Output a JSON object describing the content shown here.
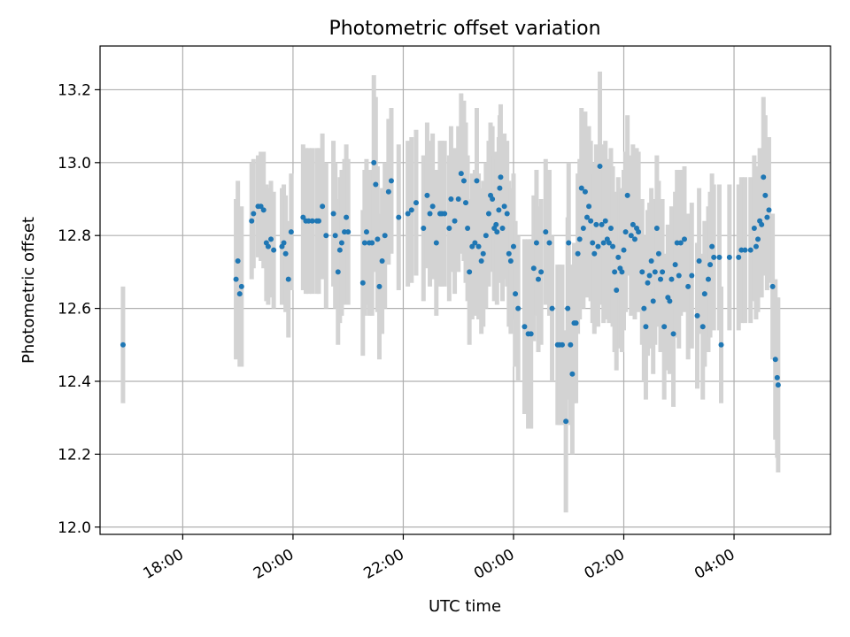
{
  "chart_data": {
    "type": "scatter",
    "title": "Photometric offset variation",
    "xlabel": "UTC time",
    "ylabel": "Photometric offset",
    "x_axis_kind": "time (hours, UTC)",
    "xlim": [
      "16:30",
      "05:45"
    ],
    "ylim": [
      11.98,
      13.32
    ],
    "x_ticks": [
      "18:00",
      "20:00",
      "22:00",
      "00:00",
      "02:00",
      "04:00"
    ],
    "y_ticks": [
      "12.0",
      "12.2",
      "12.4",
      "12.6",
      "12.8",
      "13.0",
      "13.2"
    ],
    "grid": true,
    "point_color": "#1f77b4",
    "errorbar_color": "#d3d3d3",
    "series": [
      {
        "points": [
          [
            "16:55",
            12.5,
            0.16
          ],
          [
            "18:58",
            12.68,
            0.22
          ],
          [
            "19:00",
            12.73,
            0.22
          ],
          [
            "19:02",
            12.64,
            0.2
          ],
          [
            "19:04",
            12.66,
            0.22
          ],
          [
            "19:15",
            12.84,
            0.16
          ],
          [
            "19:17",
            12.86,
            0.15
          ],
          [
            "19:22",
            12.88,
            0.14
          ],
          [
            "19:25",
            12.88,
            0.15
          ],
          [
            "19:28",
            12.87,
            0.16
          ],
          [
            "19:31",
            12.78,
            0.16
          ],
          [
            "19:33",
            12.77,
            0.16
          ],
          [
            "19:36",
            12.79,
            0.16
          ],
          [
            "19:39",
            12.76,
            0.16
          ],
          [
            "19:48",
            12.77,
            0.16
          ],
          [
            "19:50",
            12.78,
            0.16
          ],
          [
            "19:52",
            12.75,
            0.16
          ],
          [
            "19:55",
            12.68,
            0.16
          ],
          [
            "19:58",
            12.81,
            0.16
          ],
          [
            "20:11",
            12.85,
            0.2
          ],
          [
            "20:14",
            12.84,
            0.2
          ],
          [
            "20:17",
            12.84,
            0.2
          ],
          [
            "20:21",
            12.84,
            0.2
          ],
          [
            "20:26",
            12.84,
            0.2
          ],
          [
            "20:28",
            12.84,
            0.2
          ],
          [
            "20:32",
            12.88,
            0.2
          ],
          [
            "20:36",
            12.8,
            0.2
          ],
          [
            "20:44",
            12.86,
            0.2
          ],
          [
            "20:46",
            12.8,
            0.2
          ],
          [
            "20:49",
            12.7,
            0.2
          ],
          [
            "20:51",
            12.76,
            0.2
          ],
          [
            "20:53",
            12.78,
            0.2
          ],
          [
            "20:56",
            12.81,
            0.2
          ],
          [
            "20:58",
            12.85,
            0.2
          ],
          [
            "21:00",
            12.81,
            0.2
          ],
          [
            "21:16",
            12.67,
            0.2
          ],
          [
            "21:18",
            12.78,
            0.2
          ],
          [
            "21:20",
            12.81,
            0.2
          ],
          [
            "21:23",
            12.78,
            0.2
          ],
          [
            "21:26",
            12.78,
            0.2
          ],
          [
            "21:28",
            13.0,
            0.24
          ],
          [
            "21:30",
            12.94,
            0.24
          ],
          [
            "21:32",
            12.79,
            0.2
          ],
          [
            "21:34",
            12.66,
            0.2
          ],
          [
            "21:37",
            12.73,
            0.2
          ],
          [
            "21:40",
            12.8,
            0.2
          ],
          [
            "21:44",
            12.92,
            0.2
          ],
          [
            "21:47",
            12.95,
            0.2
          ],
          [
            "21:55",
            12.85,
            0.2
          ],
          [
            "22:05",
            12.86,
            0.2
          ],
          [
            "22:09",
            12.87,
            0.2
          ],
          [
            "22:14",
            12.89,
            0.2
          ],
          [
            "22:22",
            12.82,
            0.2
          ],
          [
            "22:26",
            12.91,
            0.2
          ],
          [
            "22:29",
            12.86,
            0.2
          ],
          [
            "22:32",
            12.88,
            0.2
          ],
          [
            "22:36",
            12.78,
            0.2
          ],
          [
            "22:40",
            12.86,
            0.2
          ],
          [
            "22:42",
            12.86,
            0.2
          ],
          [
            "22:45",
            12.86,
            0.2
          ],
          [
            "22:50",
            12.82,
            0.2
          ],
          [
            "22:52",
            12.9,
            0.2
          ],
          [
            "22:56",
            12.84,
            0.2
          ],
          [
            "23:00",
            12.9,
            0.2
          ],
          [
            "23:03",
            12.97,
            0.22
          ],
          [
            "23:06",
            12.95,
            0.22
          ],
          [
            "23:08",
            12.89,
            0.22
          ],
          [
            "23:10",
            12.82,
            0.2
          ],
          [
            "23:12",
            12.7,
            0.2
          ],
          [
            "23:15",
            12.77,
            0.2
          ],
          [
            "23:18",
            12.78,
            0.2
          ],
          [
            "23:20",
            12.95,
            0.2
          ],
          [
            "23:22",
            12.77,
            0.2
          ],
          [
            "23:25",
            12.73,
            0.2
          ],
          [
            "23:27",
            12.75,
            0.2
          ],
          [
            "23:30",
            12.8,
            0.2
          ],
          [
            "23:33",
            12.86,
            0.2
          ],
          [
            "23:35",
            12.91,
            0.2
          ],
          [
            "23:37",
            12.9,
            0.2
          ],
          [
            "23:39",
            12.82,
            0.2
          ],
          [
            "23:41",
            12.83,
            0.2
          ],
          [
            "23:42",
            12.81,
            0.2
          ],
          [
            "23:44",
            12.87,
            0.2
          ],
          [
            "23:45",
            12.93,
            0.2
          ],
          [
            "23:46",
            12.96,
            0.2
          ],
          [
            "23:48",
            12.82,
            0.2
          ],
          [
            "23:50",
            12.88,
            0.2
          ],
          [
            "23:53",
            12.86,
            0.2
          ],
          [
            "23:55",
            12.75,
            0.2
          ],
          [
            "23:57",
            12.73,
            0.2
          ],
          [
            "00:00",
            12.77,
            0.2
          ],
          [
            "00:02",
            12.64,
            0.2
          ],
          [
            "00:05",
            12.6,
            0.2
          ],
          [
            "00:12",
            12.55,
            0.24
          ],
          [
            "00:16",
            12.53,
            0.26
          ],
          [
            "00:19",
            12.53,
            0.26
          ],
          [
            "00:22",
            12.71,
            0.2
          ],
          [
            "00:25",
            12.78,
            0.2
          ],
          [
            "00:27",
            12.68,
            0.2
          ],
          [
            "00:30",
            12.7,
            0.2
          ],
          [
            "00:35",
            12.81,
            0.2
          ],
          [
            "00:39",
            12.78,
            0.2
          ],
          [
            "00:42",
            12.6,
            0.2
          ],
          [
            "00:48",
            12.5,
            0.22
          ],
          [
            "00:50",
            12.5,
            0.22
          ],
          [
            "00:53",
            12.5,
            0.22
          ],
          [
            "00:57",
            12.29,
            0.25
          ],
          [
            "00:59",
            12.6,
            0.25
          ],
          [
            "01:00",
            12.78,
            0.22
          ],
          [
            "01:02",
            12.5,
            0.22
          ],
          [
            "01:04",
            12.42,
            0.22
          ],
          [
            "01:06",
            12.56,
            0.22
          ],
          [
            "01:08",
            12.56,
            0.22
          ],
          [
            "01:10",
            12.75,
            0.22
          ],
          [
            "01:12",
            12.79,
            0.22
          ],
          [
            "01:14",
            12.93,
            0.22
          ],
          [
            "01:16",
            12.82,
            0.22
          ],
          [
            "01:18",
            12.92,
            0.22
          ],
          [
            "01:20",
            12.85,
            0.22
          ],
          [
            "01:22",
            12.88,
            0.22
          ],
          [
            "01:24",
            12.84,
            0.22
          ],
          [
            "01:26",
            12.78,
            0.22
          ],
          [
            "01:28",
            12.75,
            0.22
          ],
          [
            "01:30",
            12.83,
            0.22
          ],
          [
            "01:32",
            12.77,
            0.22
          ],
          [
            "01:34",
            12.99,
            0.26
          ],
          [
            "01:36",
            12.83,
            0.22
          ],
          [
            "01:38",
            12.78,
            0.22
          ],
          [
            "01:40",
            12.84,
            0.22
          ],
          [
            "01:42",
            12.79,
            0.22
          ],
          [
            "01:44",
            12.78,
            0.22
          ],
          [
            "01:46",
            12.82,
            0.22
          ],
          [
            "01:48",
            12.77,
            0.22
          ],
          [
            "01:50",
            12.7,
            0.22
          ],
          [
            "01:52",
            12.65,
            0.22
          ],
          [
            "01:54",
            12.74,
            0.22
          ],
          [
            "01:56",
            12.71,
            0.22
          ],
          [
            "01:58",
            12.7,
            0.22
          ],
          [
            "02:00",
            12.76,
            0.22
          ],
          [
            "02:02",
            12.81,
            0.22
          ],
          [
            "02:04",
            12.91,
            0.22
          ],
          [
            "02:08",
            12.8,
            0.22
          ],
          [
            "02:10",
            12.83,
            0.22
          ],
          [
            "02:12",
            12.79,
            0.22
          ],
          [
            "02:14",
            12.82,
            0.22
          ],
          [
            "02:16",
            12.81,
            0.22
          ],
          [
            "02:20",
            12.7,
            0.2
          ],
          [
            "02:22",
            12.6,
            0.2
          ],
          [
            "02:24",
            12.55,
            0.2
          ],
          [
            "02:26",
            12.67,
            0.2
          ],
          [
            "02:28",
            12.69,
            0.2
          ],
          [
            "02:30",
            12.73,
            0.2
          ],
          [
            "02:32",
            12.62,
            0.2
          ],
          [
            "02:34",
            12.7,
            0.2
          ],
          [
            "02:36",
            12.82,
            0.2
          ],
          [
            "02:38",
            12.75,
            0.2
          ],
          [
            "02:40",
            12.68,
            0.2
          ],
          [
            "02:42",
            12.7,
            0.2
          ],
          [
            "02:44",
            12.55,
            0.2
          ],
          [
            "02:48",
            12.63,
            0.2
          ],
          [
            "02:50",
            12.62,
            0.2
          ],
          [
            "02:52",
            12.68,
            0.2
          ],
          [
            "02:54",
            12.53,
            0.2
          ],
          [
            "02:56",
            12.72,
            0.2
          ],
          [
            "02:58",
            12.78,
            0.2
          ],
          [
            "03:00",
            12.69,
            0.2
          ],
          [
            "03:02",
            12.78,
            0.2
          ],
          [
            "03:06",
            12.79,
            0.2
          ],
          [
            "03:10",
            12.66,
            0.2
          ],
          [
            "03:14",
            12.69,
            0.2
          ],
          [
            "03:20",
            12.58,
            0.2
          ],
          [
            "03:22",
            12.73,
            0.2
          ],
          [
            "03:26",
            12.55,
            0.2
          ],
          [
            "03:28",
            12.64,
            0.2
          ],
          [
            "03:32",
            12.68,
            0.2
          ],
          [
            "03:34",
            12.72,
            0.2
          ],
          [
            "03:36",
            12.77,
            0.2
          ],
          [
            "03:38",
            12.74,
            0.2
          ],
          [
            "03:44",
            12.74,
            0.2
          ],
          [
            "03:46",
            12.5,
            0.16
          ],
          [
            "03:55",
            12.74,
            0.2
          ],
          [
            "04:05",
            12.74,
            0.2
          ],
          [
            "04:08",
            12.76,
            0.2
          ],
          [
            "04:12",
            12.76,
            0.2
          ],
          [
            "04:18",
            12.76,
            0.2
          ],
          [
            "04:22",
            12.82,
            0.2
          ],
          [
            "04:24",
            12.77,
            0.2
          ],
          [
            "04:26",
            12.79,
            0.2
          ],
          [
            "04:28",
            12.84,
            0.2
          ],
          [
            "04:30",
            12.83,
            0.2
          ],
          [
            "04:32",
            12.96,
            0.22
          ],
          [
            "04:34",
            12.91,
            0.22
          ],
          [
            "04:36",
            12.85,
            0.2
          ],
          [
            "04:38",
            12.87,
            0.2
          ],
          [
            "04:42",
            12.66,
            0.2
          ],
          [
            "04:45",
            12.46,
            0.22
          ],
          [
            "04:47",
            12.41,
            0.22
          ],
          [
            "04:48",
            12.39,
            0.24
          ]
        ]
      }
    ]
  }
}
